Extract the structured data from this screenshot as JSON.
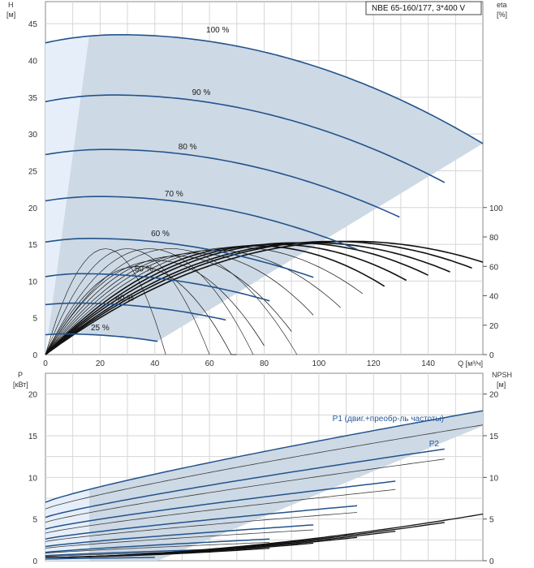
{
  "header": {
    "pump_label": "NBE 65-160/177, 3*400 V"
  },
  "colors": {
    "envelope_fill": "#cdd9e5",
    "envelope_light": "#e6eff9",
    "curve": "#23538c",
    "eff": "#111111",
    "grid": "#d6d6d6",
    "axis": "#555555"
  },
  "chart_data": [
    {
      "type": "line",
      "name": "head-efficiency",
      "axis_left": {
        "label_line1": "H",
        "label_line2": "[м]",
        "ticks": [
          "0",
          "5",
          "10",
          "15",
          "20",
          "25",
          "30",
          "35",
          "40",
          "45"
        ],
        "range": [
          0,
          48
        ]
      },
      "axis_right": {
        "label_line1": "eta",
        "label_line2": "[%]",
        "ticks": [
          "0",
          "20",
          "40",
          "60",
          "80",
          "100"
        ],
        "range": [
          0,
          240
        ]
      },
      "axis_x": {
        "label": "Q [м³/ч]",
        "ticks": [
          "0",
          "20",
          "40",
          "60",
          "80",
          "100",
          "120",
          "140"
        ],
        "range": [
          0,
          160
        ]
      },
      "speed_curves": [
        {
          "label": "100 %",
          "qmax": 160,
          "h0": 42.4,
          "hpeak": 43.5,
          "qpeak": 27,
          "hend": 28.7,
          "label_q": 63,
          "label_h": 43.6
        },
        {
          "label": "90 %",
          "qmax": 146,
          "h0": 34.4,
          "hpeak": 35.3,
          "qpeak": 24.5,
          "hend": 23.4,
          "label_q": 57,
          "label_h": 35.1
        },
        {
          "label": "80 %",
          "qmax": 129.5,
          "h0": 27.2,
          "hpeak": 27.9,
          "qpeak": 22,
          "hend": 18.7,
          "label_q": 52,
          "label_h": 27.7
        },
        {
          "label": "70 %",
          "qmax": 114,
          "h0": 20.9,
          "hpeak": 21.5,
          "qpeak": 19,
          "hend": 14.3,
          "label_q": 47,
          "label_h": 21.3
        },
        {
          "label": "60 %",
          "qmax": 98,
          "h0": 15.3,
          "hpeak": 15.8,
          "qpeak": 16,
          "hend": 10.5,
          "label_q": 42,
          "label_h": 15.9
        },
        {
          "label": "50 %",
          "qmax": 82,
          "h0": 10.6,
          "hpeak": 11.0,
          "qpeak": 13,
          "hend": 7.3,
          "label_q": 36,
          "label_h": 11.1
        },
        {
          "label": "40 %",
          "qmax": 66,
          "h0": 6.8,
          "hpeak": 7.0,
          "qpeak": 11,
          "hend": 4.7,
          "label_q": 29,
          "label_h": 7.1
        },
        {
          "label": "25 %",
          "qmax": 41,
          "h0": 2.7,
          "hpeak": 2.8,
          "qpeak": 7,
          "hend": 1.8,
          "label_q": 20,
          "label_h": 3.1
        }
      ],
      "efficiency_curves": [
        {
          "qmax": 160,
          "peak_q": 112,
          "peak_eta": 77
        },
        {
          "qmax": 156,
          "peak_q": 105,
          "peak_eta": 77
        },
        {
          "qmax": 148,
          "peak_q": 98,
          "peak_eta": 76
        },
        {
          "qmax": 140,
          "peak_q": 91,
          "peak_eta": 76
        },
        {
          "qmax": 132,
          "peak_q": 84,
          "peak_eta": 75
        },
        {
          "qmax": 124,
          "peak_q": 77,
          "peak_eta": 74
        },
        {
          "qmax": 116,
          "peak_q": 70,
          "peak_eta": 73
        },
        {
          "qmax": 108,
          "peak_q": 62,
          "peak_eta": 71
        },
        {
          "qmax": 99,
          "peak_q": 55,
          "peak_eta": 69
        },
        {
          "qmax": 90,
          "peak_q": 48,
          "peak_eta": 67
        },
        {
          "qmax": 80,
          "peak_q": 41,
          "peak_eta": 64
        },
        {
          "qmax": 70,
          "peak_q": 34,
          "peak_eta": 60
        }
      ],
      "envelope_light_q": 16
    },
    {
      "type": "line",
      "name": "power-npsh",
      "axis_left": {
        "label_line1": "P",
        "label_line2": "[кВт]",
        "ticks": [
          "0",
          "5",
          "10",
          "15",
          "20"
        ],
        "range": [
          0,
          22.5
        ]
      },
      "axis_right": {
        "label_line1": "NPSH",
        "label_line2": "[м]",
        "ticks": [
          "0",
          "5",
          "10",
          "15",
          "20"
        ],
        "range": [
          0,
          22.5
        ]
      },
      "series_labels": {
        "p1": "P1 (двиг.+преобр-ль частоты)",
        "p2": "P2"
      },
      "power_curves": [
        {
          "name": "P1 100%",
          "qmax": 160,
          "p0": 7.0,
          "pend": 18.0
        },
        {
          "name": "P2 100%",
          "qmax": 160,
          "p0": 6.2,
          "pend": 16.3
        },
        {
          "name": "P1 90%",
          "qmax": 146,
          "p0": 5.2,
          "pend": 13.4
        },
        {
          "name": "P2 90%",
          "qmax": 146,
          "p0": 4.6,
          "pend": 12.2
        },
        {
          "name": "P1 80%",
          "qmax": 129.5,
          "p0": 3.8,
          "pend": 9.6
        },
        {
          "name": "P2 80%",
          "qmax": 129.5,
          "p0": 3.3,
          "pend": 8.6
        },
        {
          "name": "P1 70%",
          "qmax": 114,
          "p0": 2.6,
          "pend": 6.6
        },
        {
          "name": "P2 70%",
          "qmax": 114,
          "p0": 2.3,
          "pend": 5.8
        },
        {
          "name": "P1 60%",
          "qmax": 98,
          "p0": 1.7,
          "pend": 4.3
        },
        {
          "name": "P2 60%",
          "qmax": 98,
          "p0": 1.5,
          "pend": 3.7
        },
        {
          "name": "P1 50%",
          "qmax": 82,
          "p0": 1.0,
          "pend": 2.6
        },
        {
          "name": "P2 50%",
          "qmax": 82,
          "p0": 0.9,
          "pend": 2.2
        },
        {
          "name": "P1 40%",
          "qmax": 66,
          "p0": 0.6,
          "pend": 1.4
        },
        {
          "name": "P2 40%",
          "qmax": 66,
          "p0": 0.5,
          "pend": 1.2
        },
        {
          "name": "P1 25%",
          "qmax": 41,
          "p0": 0.2,
          "pend": 0.4
        }
      ],
      "npsh_curves": [
        {
          "qmax": 160,
          "nend": 5.6
        },
        {
          "qmax": 146,
          "nend": 4.6
        },
        {
          "qmax": 129.5,
          "nend": 3.6
        },
        {
          "qmax": 114,
          "nend": 2.8
        },
        {
          "qmax": 98,
          "nend": 2.1
        },
        {
          "qmax": 82,
          "nend": 1.5
        }
      ],
      "envelope_light_q": 16
    }
  ]
}
